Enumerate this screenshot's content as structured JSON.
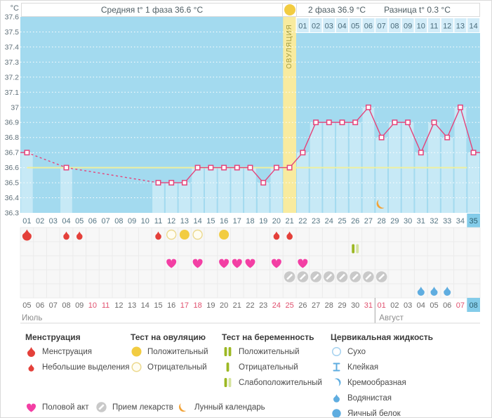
{
  "header": {
    "unit": "°C",
    "phase1_avg_label": "Средняя t° 1 фаза 36.6 °C",
    "phase2_avg_label": "2 фаза 36.9 °C",
    "diff_label": "Разница t° 0.3 °C",
    "ovulation_label": "ОВУЛЯЦИЯ"
  },
  "chart_data": {
    "type": "line",
    "title": "Basal body temperature cycle chart",
    "ylabel": "°C",
    "ylim": [
      36.3,
      37.6
    ],
    "ytick_labels": [
      "37.6",
      "37.5",
      "37.4",
      "37.3",
      "37.2",
      "37.1",
      "37",
      "36.9",
      "36.8",
      "36.7",
      "36.6",
      "36.5",
      "36.4",
      "36.3"
    ],
    "grid": true,
    "coverline_temperature": 36.6,
    "phase1_avg": 36.6,
    "phase2_avg": 36.9,
    "temp_difference": 0.3,
    "ovulation_day": 21,
    "current_day": 35,
    "day_labels": [
      "01",
      "02",
      "03",
      "04",
      "05",
      "06",
      "07",
      "08",
      "09",
      "10",
      "11",
      "12",
      "13",
      "14",
      "15",
      "16",
      "17",
      "18",
      "19",
      "20",
      "21",
      "22",
      "23",
      "24",
      "25",
      "26",
      "27",
      "28",
      "29",
      "30",
      "31",
      "32",
      "33",
      "34",
      "35"
    ],
    "temperatures": [
      36.7,
      null,
      null,
      36.6,
      null,
      null,
      null,
      null,
      null,
      null,
      36.5,
      36.5,
      36.5,
      36.6,
      36.6,
      36.6,
      36.6,
      36.6,
      36.5,
      36.6,
      36.6,
      36.7,
      36.9,
      36.9,
      36.9,
      36.9,
      37.0,
      36.8,
      36.9,
      36.9,
      36.7,
      36.9,
      36.8,
      37.0,
      36.7
    ],
    "phase2_day_labels": [
      "01",
      "02",
      "03",
      "04",
      "05",
      "06",
      "07",
      "08",
      "09",
      "10",
      "11",
      "12",
      "13",
      "14"
    ]
  },
  "events": {
    "menstruation": [
      {
        "day": 1,
        "intensity": "heavy"
      },
      {
        "day": 4,
        "intensity": "light"
      },
      {
        "day": 5,
        "intensity": "light"
      },
      {
        "day": 11,
        "intensity": "light"
      },
      {
        "day": 20,
        "intensity": "light"
      },
      {
        "day": 21,
        "intensity": "light"
      }
    ],
    "ovulation_tests": [
      {
        "day": 12,
        "result": "negative"
      },
      {
        "day": 13,
        "result": "positive"
      },
      {
        "day": 14,
        "result": "negative"
      },
      {
        "day": 16,
        "result": "positive"
      }
    ],
    "pregnancy_tests": [
      {
        "day": 26,
        "result": "weak_positive"
      }
    ],
    "intercourse_days": [
      12,
      14,
      16,
      17,
      18,
      20,
      22
    ],
    "medication_days": [
      21,
      22,
      23,
      24,
      25,
      26,
      27,
      28
    ],
    "cervical_fluid": [
      {
        "day": 31,
        "type": "watery"
      },
      {
        "day": 32,
        "type": "watery"
      },
      {
        "day": 33,
        "type": "watery"
      }
    ],
    "lunar_calendar": [
      {
        "day": 28,
        "phase": "crescent"
      }
    ]
  },
  "calendar": {
    "dates": [
      "05",
      "06",
      "07",
      "08",
      "09",
      "10",
      "11",
      "12",
      "13",
      "14",
      "15",
      "16",
      "17",
      "18",
      "19",
      "20",
      "21",
      "22",
      "23",
      "24",
      "25",
      "26",
      "27",
      "28",
      "29",
      "30",
      "31",
      "01",
      "02",
      "03",
      "04",
      "05",
      "06",
      "07",
      "08"
    ],
    "weekend_days": [
      6,
      7,
      13,
      14,
      20,
      21,
      27,
      28,
      34
    ],
    "current_day": 35,
    "months": [
      {
        "label": "Июль",
        "from_day": 1
      },
      {
        "label": "Август",
        "from_day": 28
      }
    ]
  },
  "legend": {
    "sections": [
      {
        "title": "Менструация",
        "items": [
          {
            "icon": "drop-large",
            "label": "Менструация"
          },
          {
            "icon": "drop-small",
            "label": "Небольшие выделения"
          }
        ]
      },
      {
        "title": "Тест на овуляцию",
        "items": [
          {
            "icon": "circle-filled",
            "label": "Положительный"
          },
          {
            "icon": "circle-outline",
            "label": "Отрицательный"
          }
        ]
      },
      {
        "title": "Тест на беременность",
        "items": [
          {
            "icon": "bars-positive",
            "label": "Положительный"
          },
          {
            "icon": "bar-negative",
            "label": "Отрицательный"
          },
          {
            "icon": "bars-weak",
            "label": "Слабоположительный"
          }
        ]
      },
      {
        "title": "Цервикальная жидкость",
        "items": [
          {
            "icon": "cf-dry",
            "label": "Сухо"
          },
          {
            "icon": "cf-sticky",
            "label": "Клейкая"
          },
          {
            "icon": "cf-creamy",
            "label": "Кремообразная"
          },
          {
            "icon": "cf-watery",
            "label": "Водянистая"
          },
          {
            "icon": "cf-eggwhite",
            "label": "Яичный белок"
          }
        ]
      }
    ],
    "extra_items": [
      {
        "icon": "heart",
        "label": "Половой акт"
      },
      {
        "icon": "pill",
        "label": "Прием лекарств"
      },
      {
        "icon": "moon",
        "label": "Лунный календарь"
      }
    ]
  },
  "colors": {
    "plot_bg": "#a3daef",
    "bar_fill": "#c7e9f6",
    "ovulation_column": "#f8eb9f",
    "coverline": "#eef0a0",
    "line": "#e5437a",
    "phase2_cell_bg": "#d2ecf8",
    "phase2_cell_text": "#4a6b7a",
    "current_cell_bg": "#84cce9",
    "current_cell_text": "#2e5f6e",
    "axis_text": "#5e6e77",
    "day_axis_text": "#567684",
    "date_text": "#6b6b6b",
    "weekend_text": "#e0506e",
    "month_text": "#8c8c8c",
    "event_area_bg": "#f7f7f7",
    "event_grid_line": "#ebebeb",
    "menstruation": "#e4403a",
    "test_positive": "#f2cc41",
    "test_negative_ring": "#ecd98e",
    "pregnancy_dark": "#9cb823",
    "pregnancy_light": "#d4e39c",
    "intercourse": "#f33fa4",
    "medication": "#c9c9c9",
    "cervical": "#5fade0",
    "cervical_light": "#a6d2ef",
    "lunar": "#f2a338",
    "header_text": "#4e5d63",
    "ovulation_label_text": "#a19b3c"
  }
}
